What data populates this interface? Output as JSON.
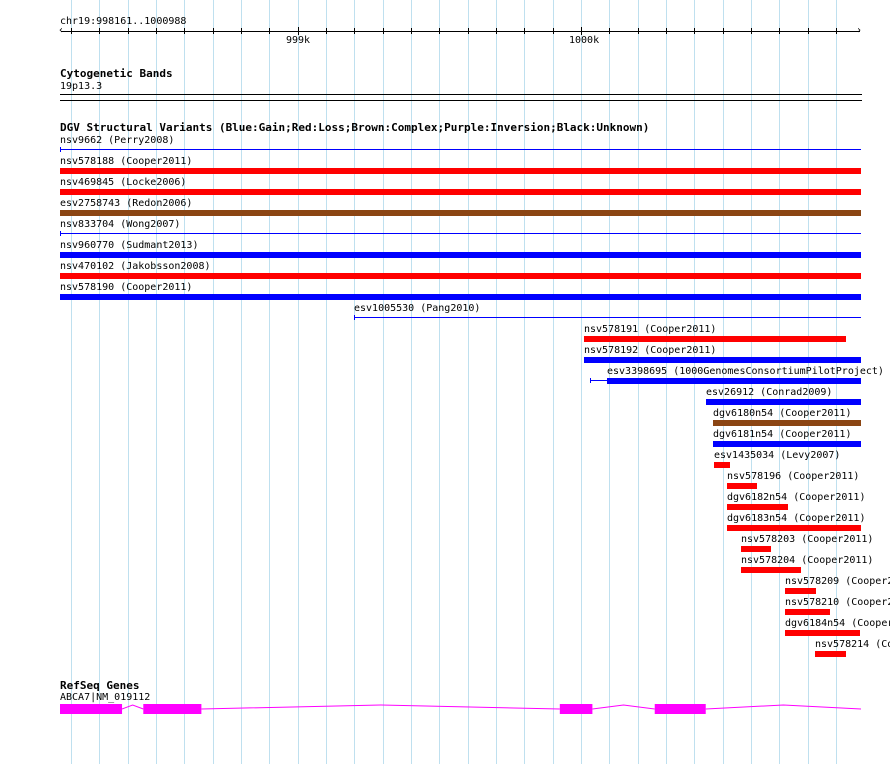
{
  "ruler": {
    "range_label": "chr19:998161..1000988",
    "start": 998161,
    "end": 1000988,
    "major_ticks": [
      {
        "pos": 999000,
        "label": "999k"
      },
      {
        "pos": 1000000,
        "label": "1000k"
      }
    ]
  },
  "cytoband": {
    "title": "Cytogenetic Bands",
    "band": "19p13.3"
  },
  "dgv": {
    "title": "DGV Structural Variants (Blue:Gain;Red:Loss;Brown:Complex;Purple:Inversion;Black:Unknown)",
    "colors": {
      "gain": "#0000ff",
      "loss": "#ff0000",
      "complex": "#8b4513",
      "unknown": "#000000"
    },
    "features": [
      {
        "label": "nsv9662 (Perry2008)",
        "type": "gain",
        "style": "line",
        "start": 998161,
        "end": 1000988
      },
      {
        "label": "nsv578188 (Cooper2011)",
        "type": "loss",
        "style": "box",
        "start": 998161,
        "end": 1000988
      },
      {
        "label": "nsv469845 (Locke2006)",
        "type": "loss",
        "style": "box",
        "start": 998161,
        "end": 1000988
      },
      {
        "label": "esv2758743 (Redon2006)",
        "type": "complex",
        "style": "box",
        "start": 998161,
        "end": 1000988
      },
      {
        "label": "nsv833704 (Wong2007)",
        "type": "gain",
        "style": "line",
        "start": 998161,
        "end": 1000988
      },
      {
        "label": "nsv960770 (Sudmant2013)",
        "type": "gain",
        "style": "box",
        "start": 998161,
        "end": 1000988
      },
      {
        "label": "nsv470102 (Jakobsson2008)",
        "type": "loss",
        "style": "box",
        "start": 998161,
        "end": 1000988
      },
      {
        "label": "nsv578190 (Cooper2011)",
        "type": "gain",
        "style": "box",
        "start": 998161,
        "end": 1000988
      },
      {
        "label": "esv1005530 (Pang2010)",
        "type": "gain",
        "style": "line",
        "start": 999200,
        "end": 1000988
      },
      {
        "label": "nsv578191 (Cooper2011)",
        "type": "loss",
        "style": "box",
        "start": 1000010,
        "end": 1000935
      },
      {
        "label": "nsv578192 (Cooper2011)",
        "type": "gain",
        "style": "box",
        "start": 1000010,
        "end": 1000988
      },
      {
        "label": "esv3398695 (1000GenomesConsortiumPilotProject)",
        "type": "gain",
        "style": "box",
        "start": 1000090,
        "end": 1000988,
        "line_start": 1000030
      },
      {
        "label": "esv26912 (Conrad2009)",
        "type": "gain",
        "style": "box",
        "start": 1000440,
        "end": 1000988
      },
      {
        "label": "dgv6180n54 (Cooper2011)",
        "type": "complex",
        "style": "box",
        "start": 1000465,
        "end": 1000988
      },
      {
        "label": "dgv6181n54 (Cooper2011)",
        "type": "gain",
        "style": "box",
        "start": 1000465,
        "end": 1000988
      },
      {
        "label": "esv1435034 (Levy2007)",
        "type": "loss",
        "style": "box",
        "start": 1000470,
        "end": 1000525
      },
      {
        "label": "nsv578196 (Cooper2011)",
        "type": "loss",
        "style": "box",
        "start": 1000515,
        "end": 1000620
      },
      {
        "label": "dgv6182n54 (Cooper2011)",
        "type": "loss",
        "style": "box",
        "start": 1000515,
        "end": 1000730
      },
      {
        "label": "dgv6183n54 (Cooper2011)",
        "type": "loss",
        "style": "box",
        "start": 1000515,
        "end": 1000988
      },
      {
        "label": "nsv578203 (Cooper2011)",
        "type": "loss",
        "style": "box",
        "start": 1000565,
        "end": 1000670
      },
      {
        "label": "nsv578204 (Cooper2011)",
        "type": "loss",
        "style": "box",
        "start": 1000565,
        "end": 1000775
      },
      {
        "label": "nsv578209 (Cooper2",
        "type": "loss",
        "style": "box",
        "start": 1000720,
        "end": 1000830
      },
      {
        "label": "nsv578210 (Cooper2",
        "type": "loss",
        "style": "box",
        "start": 1000720,
        "end": 1000880
      },
      {
        "label": "dgv6184n54 (Cooper",
        "type": "loss",
        "style": "box",
        "start": 1000720,
        "end": 1000985
      },
      {
        "label": "nsv578214 (Co",
        "type": "loss",
        "style": "box",
        "start": 1000825,
        "end": 1000935
      }
    ]
  },
  "refseq": {
    "title": "RefSeq Genes",
    "gene_label": "ABCA7|NM_019112",
    "color": "#ff00ff",
    "exons": [
      [
        998161,
        998380
      ],
      [
        998455,
        998660
      ],
      [
        999925,
        1000040
      ],
      [
        1000260,
        1000440
      ]
    ],
    "introns": [
      [
        998380,
        998455
      ],
      [
        998660,
        999925
      ],
      [
        1000040,
        1000260
      ],
      [
        1000440,
        1000988
      ]
    ]
  }
}
